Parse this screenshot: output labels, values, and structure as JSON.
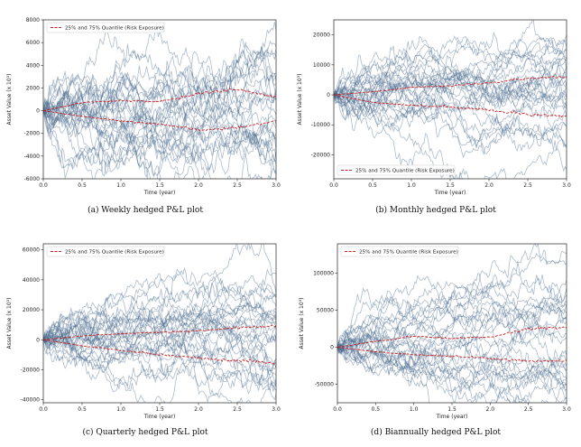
{
  "chart_data": [
    {
      "type": "line",
      "caption": "(a) Weekly hedged P&L plot",
      "xlabel": "Time (year)",
      "ylabel": "Asset Value (x 10³)",
      "xlim": [
        0.0,
        3.0
      ],
      "ylim": [
        -6000,
        8000
      ],
      "xticks": [
        "0.0",
        "0.5",
        "1.0",
        "1.5",
        "2.0",
        "2.5",
        "3.0"
      ],
      "yticks": [
        -6000,
        -4000,
        -2000,
        0,
        2000,
        4000,
        6000,
        8000
      ],
      "legend": "25% and 75% Quantile (Risk Exposure)",
      "legend_position": "top-left",
      "paths": {
        "count": 30,
        "spread_at_end": 4800,
        "color": "#4a6a8f",
        "noise": 0.5
      },
      "quantile_upper": {
        "t": [
          0,
          0.5,
          1,
          1.5,
          2,
          2.5,
          3
        ],
        "v": [
          0,
          700,
          900,
          800,
          1500,
          1900,
          1200
        ]
      },
      "quantile_lower": {
        "t": [
          0,
          0.5,
          1,
          1.5,
          2,
          2.5,
          3
        ],
        "v": [
          0,
          -500,
          -900,
          -1200,
          -1700,
          -1500,
          -900
        ]
      }
    },
    {
      "type": "line",
      "caption": "(b) Monthly hedged P&L plot",
      "xlabel": "Time (year)",
      "ylabel": "Asset Value (x 10³)",
      "xlim": [
        0.0,
        3.0
      ],
      "ylim": [
        -28000,
        25000
      ],
      "xticks": [
        "0.0",
        "0.5",
        "1.0",
        "1.5",
        "2.0",
        "2.5",
        "3.0"
      ],
      "yticks": [
        -20000,
        -10000,
        0,
        10000,
        20000
      ],
      "legend": "25% and 75% Quantile (Risk Exposure)",
      "legend_position": "bottom-left",
      "paths": {
        "count": 30,
        "spread_at_end": 13000,
        "color": "#4a6a8f",
        "noise": 0.7
      },
      "quantile_upper": {
        "t": [
          0,
          0.5,
          1,
          1.5,
          2,
          2.5,
          3
        ],
        "v": [
          0,
          1000,
          2500,
          3000,
          4000,
          5500,
          6000
        ]
      },
      "quantile_lower": {
        "t": [
          0,
          0.5,
          1,
          1.5,
          2,
          2.5,
          3
        ],
        "v": [
          0,
          -2500,
          -3500,
          -4000,
          -5000,
          -6500,
          -7000
        ]
      }
    },
    {
      "type": "line",
      "caption": "(c) Quarterly hedged P&L plot",
      "xlabel": "Time (year)",
      "ylabel": "Asset Value (x 10³)",
      "xlim": [
        0.0,
        3.0
      ],
      "ylim": [
        -42000,
        64000
      ],
      "xticks": [
        "0.0",
        "0.5",
        "1.0",
        "1.5",
        "2.0",
        "2.5",
        "3.0"
      ],
      "yticks": [
        -40000,
        -20000,
        0,
        20000,
        40000,
        60000
      ],
      "legend": "25% and 75% Quantile (Risk Exposure)",
      "legend_position": "top-left",
      "paths": {
        "count": 30,
        "spread_at_end": 30000,
        "color": "#4a6a8f",
        "noise": 1.0
      },
      "quantile_upper": {
        "t": [
          0,
          0.5,
          1,
          1.5,
          2,
          2.5,
          3
        ],
        "v": [
          0,
          2500,
          4000,
          5000,
          6000,
          8000,
          9500
        ]
      },
      "quantile_lower": {
        "t": [
          0,
          0.5,
          1,
          1.5,
          2,
          2.5,
          3
        ],
        "v": [
          0,
          -4000,
          -7000,
          -10000,
          -12000,
          -14000,
          -15000
        ]
      }
    },
    {
      "type": "line",
      "caption": "(d) Biannually hedged P&L plot",
      "xlabel": "Time (year)",
      "ylabel": "Asset Value (x 10³)",
      "xlim": [
        0.0,
        3.0
      ],
      "ylim": [
        -75000,
        140000
      ],
      "xticks": [
        "0.0",
        "0.5",
        "1.0",
        "1.5",
        "2.0",
        "2.5",
        "3.0"
      ],
      "yticks": [
        -50000,
        0,
        50000,
        100000
      ],
      "legend": "25% and 75% Quantile (Risk Exposure)",
      "legend_position": "top-left",
      "paths": {
        "count": 30,
        "spread_at_end": 55000,
        "color": "#4a6a8f",
        "noise": 1.2
      },
      "quantile_upper": {
        "t": [
          0,
          0.5,
          1,
          1.5,
          2,
          2.5,
          3
        ],
        "v": [
          0,
          8000,
          15000,
          12000,
          14000,
          25000,
          27000
        ]
      },
      "quantile_lower": {
        "t": [
          0,
          0.5,
          1,
          1.5,
          2,
          2.5,
          3
        ],
        "v": [
          0,
          -6000,
          -10000,
          -12000,
          -15000,
          -19000,
          -18000
        ]
      }
    }
  ]
}
